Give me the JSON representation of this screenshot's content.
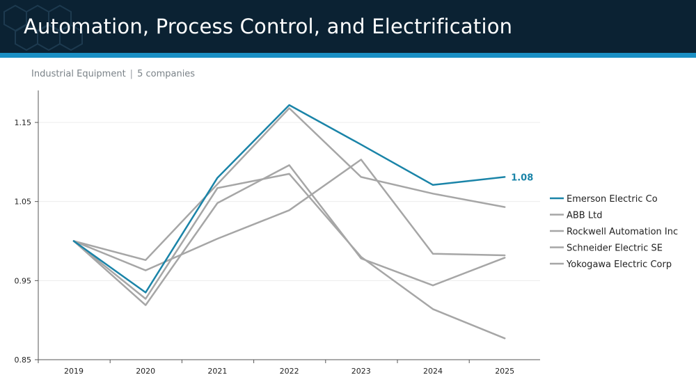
{
  "header": {
    "title": "Automation, Process Control, and Electrification",
    "subtitle_sector": "Industrial Equipment",
    "subtitle_separator": "|",
    "subtitle_count": "5 companies"
  },
  "colors": {
    "header_bg": "#0b2233",
    "header_strip": "#1a8fc4",
    "highlight": "#1a84a8",
    "peer": "#a6a6a6"
  },
  "chart_data": {
    "type": "line",
    "x": [
      "2019",
      "2020",
      "2021",
      "2022",
      "2023",
      "2024",
      "2025"
    ],
    "y_ticks": [
      "0.85",
      "0.95",
      "1.05",
      "1.15"
    ],
    "ylim": [
      0.85,
      1.16
    ],
    "grid": true,
    "legend_position": "right",
    "end_label": "1.08",
    "series": [
      {
        "name": "Emerson Electric Co",
        "highlight": true,
        "values": [
          1.0,
          0.935,
          1.08,
          1.172,
          1.122,
          1.071,
          1.081
        ]
      },
      {
        "name": "ABB Ltd",
        "highlight": false,
        "values": [
          1.0,
          0.919,
          1.048,
          1.096,
          0.978,
          0.944,
          0.979
        ]
      },
      {
        "name": "Rockwell Automation Inc",
        "highlight": false,
        "values": [
          1.0,
          0.927,
          1.067,
          1.085,
          0.98,
          0.914,
          0.877
        ]
      },
      {
        "name": "Schneider Electric SE",
        "highlight": false,
        "values": [
          1.0,
          0.963,
          1.003,
          1.039,
          1.103,
          0.984,
          0.982
        ]
      },
      {
        "name": "Yokogawa Electric Corp",
        "highlight": false,
        "values": [
          1.0,
          0.976,
          1.072,
          1.168,
          1.081,
          1.06,
          1.043
        ]
      }
    ]
  }
}
